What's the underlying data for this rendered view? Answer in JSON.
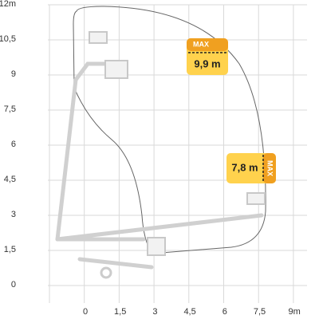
{
  "y_axis": {
    "labels": [
      "0",
      "1,5",
      "3",
      "4,5",
      "6",
      "7,5",
      "9",
      "10,5",
      "12m"
    ]
  },
  "x_axis": {
    "labels": [
      "0",
      "1,5",
      "3",
      "4,5",
      "6",
      "7,5",
      "9m"
    ]
  },
  "callouts": [
    {
      "tag": "MAX",
      "value": "9,9 m"
    },
    {
      "tag": "MAX",
      "value": "7,8 m"
    }
  ]
}
